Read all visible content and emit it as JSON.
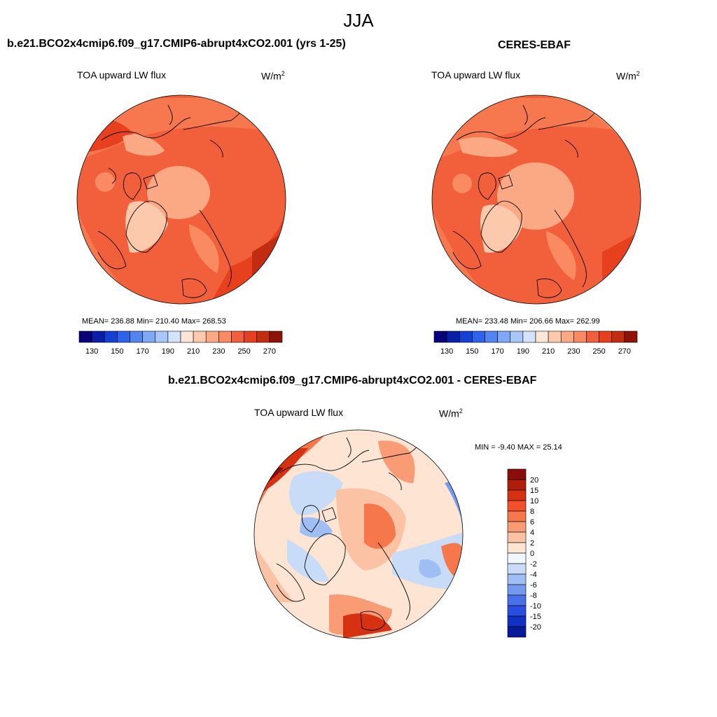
{
  "season": "JJA",
  "units_base": "W/m",
  "units_exp": "2",
  "chart_data": [
    {
      "type": "heatmap",
      "id": "model",
      "title": "b.e21.BCO2x4cmip6.f09_g17.CMIP6-abrupt4xCO2.001 (yrs 1-25)",
      "variable": "TOA upward LW flux",
      "projection": "north polar stereographic",
      "stats_text": "MEAN= 236.88  Min= 210.40  Max= 268.53",
      "mean": 236.88,
      "min": 210.4,
      "max": 268.53,
      "colorbar": {
        "orientation": "horizontal",
        "ticks": [
          "130",
          "150",
          "170",
          "190",
          "210",
          "230",
          "250",
          "270"
        ],
        "colors": [
          "#08007a",
          "#0a1fa8",
          "#1540d4",
          "#2e62ea",
          "#5284f0",
          "#7fa8f5",
          "#a9c6f8",
          "#d3e3fb",
          "#fde6d8",
          "#fcc9ad",
          "#fba985",
          "#f98a62",
          "#f2603b",
          "#e6401f",
          "#c22d12",
          "#8f1209"
        ]
      }
    },
    {
      "type": "heatmap",
      "id": "obs",
      "title": "CERES-EBAF",
      "variable": "TOA upward LW flux",
      "projection": "north polar stereographic",
      "stats_text": "MEAN= 233.48  Min= 206.66  Max= 262.99",
      "mean": 233.48,
      "min": 206.66,
      "max": 262.99,
      "colorbar": {
        "orientation": "horizontal",
        "ticks": [
          "130",
          "150",
          "170",
          "190",
          "210",
          "230",
          "250",
          "270"
        ],
        "colors": [
          "#08007a",
          "#0a1fa8",
          "#1540d4",
          "#2e62ea",
          "#5284f0",
          "#7fa8f5",
          "#a9c6f8",
          "#d3e3fb",
          "#fde6d8",
          "#fcc9ad",
          "#fba985",
          "#f98a62",
          "#f2603b",
          "#e6401f",
          "#c22d12",
          "#8f1209"
        ]
      }
    },
    {
      "type": "heatmap",
      "id": "diff",
      "title": "b.e21.BCO2x4cmip6.f09_g17.CMIP6-abrupt4xCO2.001 - CERES-EBAF",
      "variable": "TOA upward LW flux",
      "projection": "north polar stereographic",
      "stats_text": "MIN =  -9.40 MAX =  25.14",
      "min": -9.4,
      "max": 25.14,
      "colorbar": {
        "orientation": "vertical",
        "labels": [
          "20",
          "15",
          "10",
          "8",
          "6",
          "4",
          "2",
          "0",
          "-2",
          "-4",
          "-6",
          "-8",
          "-10",
          "-15",
          "-20"
        ],
        "colors": [
          "#8b0d09",
          "#b01e0a",
          "#d63111",
          "#f2502a",
          "#f6774c",
          "#f99c76",
          "#fbc2a3",
          "#fde4d3",
          "#f1f6fd",
          "#c9dcf7",
          "#9fbef3",
          "#7499ee",
          "#4a70e9",
          "#2a4ee0",
          "#1131c4",
          "#071a9a"
        ]
      }
    }
  ]
}
